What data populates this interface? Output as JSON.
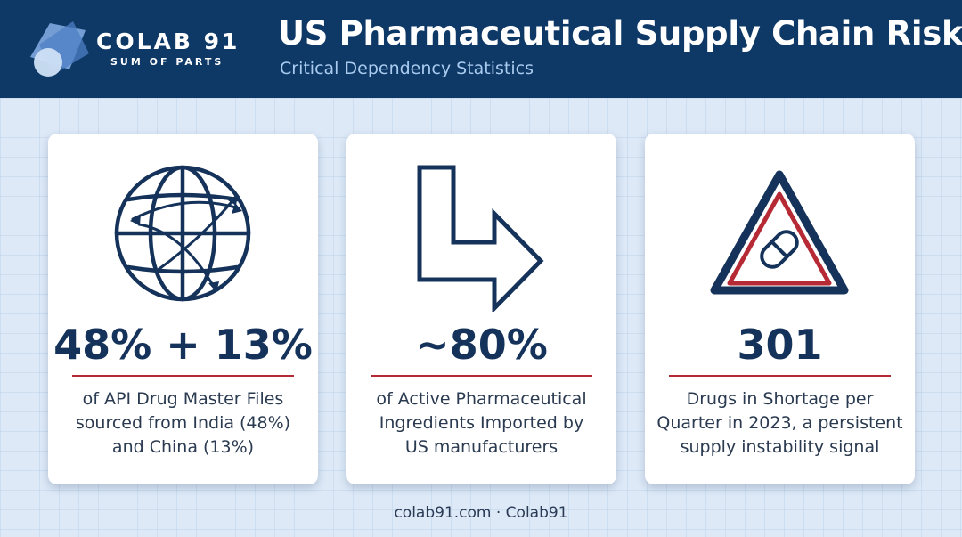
{
  "header": {
    "brand": "COLAB 91",
    "brand_tagline": "SUM OF PARTS",
    "title": "US Pharmaceutical Supply Chain Risk",
    "subtitle": "Critical Dependency Statistics"
  },
  "cards": [
    {
      "icon": "globe-trade-icon",
      "stat": "48% + 13%",
      "desc_lines": [
        "of API Drug Master Files",
        "sourced from India (48%)",
        "and China (13%)"
      ]
    },
    {
      "icon": "turn-right-arrow-icon",
      "stat": "~80%",
      "desc_lines": [
        "of Active Pharmaceutical",
        "Ingredients Imported by",
        "US manufacturers"
      ]
    },
    {
      "icon": "warning-pill-icon",
      "stat": "301",
      "desc_lines": [
        "Drugs in Shortage per",
        "Quarter in 2023, a persistent",
        "supply instability signal"
      ]
    }
  ],
  "footer": {
    "text": "colab91.com · Colab91"
  },
  "colors": {
    "header_bg": "#0e3866",
    "accent_red": "#b52a35",
    "stat_text": "#15335a",
    "page_bg": "#dde9f7"
  }
}
